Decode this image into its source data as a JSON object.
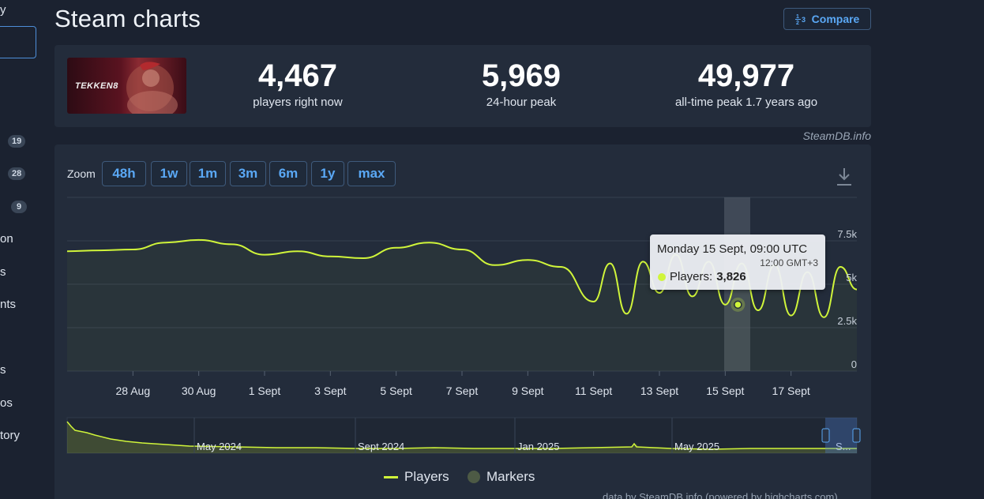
{
  "sidebar": {
    "items": [
      {
        "text": "y",
        "top": 4
      },
      {
        "text": "on",
        "top": 294
      },
      {
        "text": "s",
        "top": 336
      },
      {
        "text": "nts",
        "top": 377
      },
      {
        "text": "s",
        "top": 460
      },
      {
        "text": "os",
        "top": 502
      },
      {
        "text": "tory",
        "top": 543
      }
    ],
    "badges": [
      "19",
      "28",
      "9"
    ]
  },
  "header": {
    "title": "Steam charts",
    "compare_label": "Compare"
  },
  "stats": {
    "game_logo_text": "TEKKEN8",
    "current_value": "4,467",
    "current_label": "players right now",
    "peak24_value": "5,969",
    "peak24_label": "24-hour peak",
    "alltime_value": "49,977",
    "alltime_label": "all-time peak 1.7 years ago"
  },
  "credit": "SteamDB.info",
  "zoom": {
    "label": "Zoom",
    "buttons": [
      "48h",
      "1w",
      "1m",
      "3m",
      "6m",
      "1y",
      "max"
    ]
  },
  "tooltip": {
    "title": "Monday 15 Sept, 09:00 UTC",
    "subtitle": "12:00 GMT+3",
    "series_label": "Players:",
    "value": "3,826"
  },
  "legend": {
    "players": "Players",
    "markers": "Markers"
  },
  "footer": "data by SteamDB.info (powered by highcharts.com)",
  "colors": {
    "line": "#d0f53a",
    "accent": "#5aa8f5",
    "background": "#1b2230",
    "panel": "#232c3b"
  },
  "chart_data": {
    "type": "line",
    "series": [
      {
        "name": "Players"
      }
    ],
    "x_ticks": [
      "28 Aug",
      "30 Aug",
      "1 Sept",
      "3 Sept",
      "5 Sept",
      "7 Sept",
      "9 Sept",
      "11 Sept",
      "13 Sept",
      "15 Sept",
      "17 Sept"
    ],
    "y_ticks": [
      "0",
      "2.5k",
      "5k",
      "7.5k"
    ],
    "ylim": [
      0,
      10000
    ],
    "x": [
      "26 Aug",
      "27 Aug",
      "28 Aug",
      "29 Aug",
      "30 Aug",
      "31 Aug",
      "1 Sept",
      "2 Sept",
      "3 Sept",
      "4 Sept",
      "5 Sept",
      "6 Sept",
      "7 Sept",
      "8 Sept",
      "9 Sept",
      "10 Sept",
      "11 Sept",
      "11.5 Sept",
      "12 Sept",
      "12.5 Sept",
      "13 Sept",
      "13.5 Sept",
      "14 Sept",
      "14.5 Sept",
      "15 Sept",
      "15.5 Sept",
      "16 Sept",
      "16.5 Sept",
      "17 Sept",
      "17.5 Sept",
      "18 Sept",
      "18.5 Sept",
      "19 Sept"
    ],
    "values": [
      6900,
      6950,
      7000,
      7400,
      7550,
      7300,
      6700,
      6900,
      6600,
      6500,
      7100,
      7400,
      7000,
      6100,
      6400,
      6000,
      4000,
      6200,
      3300,
      6300,
      4500,
      6700,
      4300,
      6300,
      3826,
      6200,
      3500,
      6100,
      3200,
      5700,
      3100,
      6000,
      4700
    ],
    "highlight": {
      "x": "15 Sept",
      "value": 3826
    },
    "navigator_ticks": [
      "May 2024",
      "Sept 2024",
      "Jan 2025",
      "May 2025",
      "S..."
    ]
  }
}
